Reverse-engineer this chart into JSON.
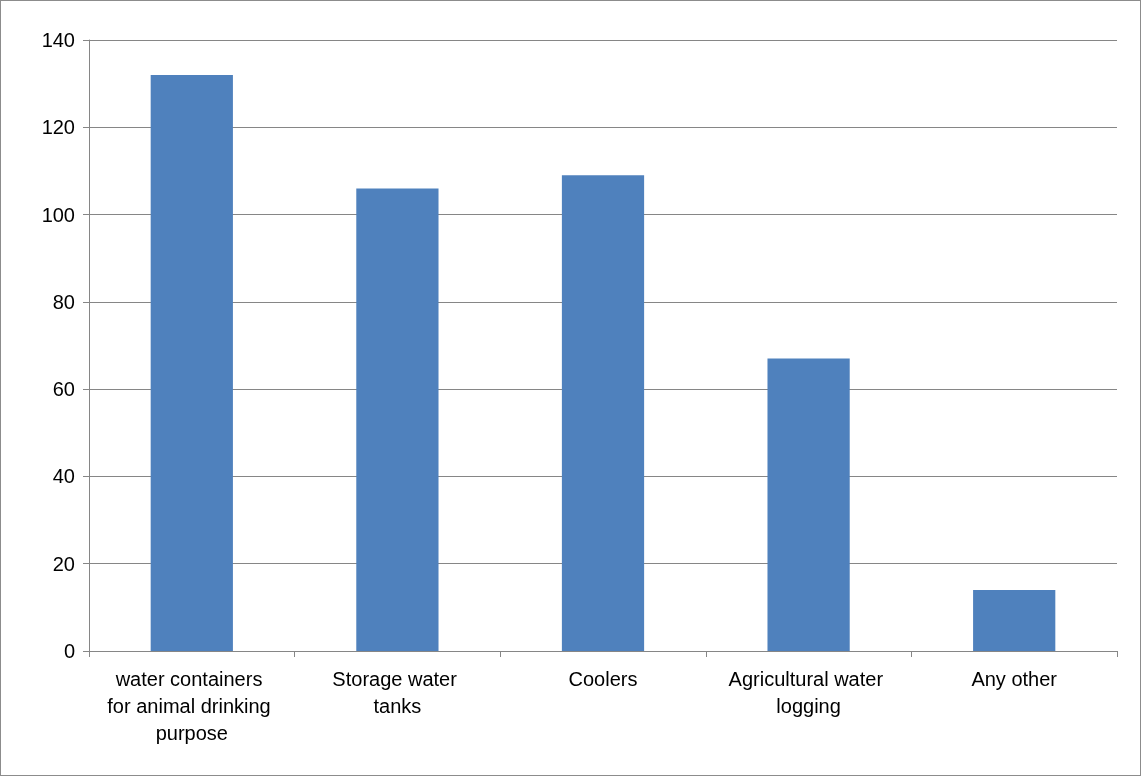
{
  "chart_data": {
    "type": "bar",
    "categories": [
      "water containers for animal drinking purpose",
      "Storage water tanks",
      "Coolers",
      "Agricultural water logging",
      "Any other"
    ],
    "values": [
      132,
      106,
      109,
      67,
      14
    ],
    "color": "#4f81bd",
    "ylim": [
      0,
      140
    ],
    "yticks": [
      0,
      20,
      40,
      60,
      80,
      100,
      120,
      140
    ],
    "grid": "y"
  }
}
